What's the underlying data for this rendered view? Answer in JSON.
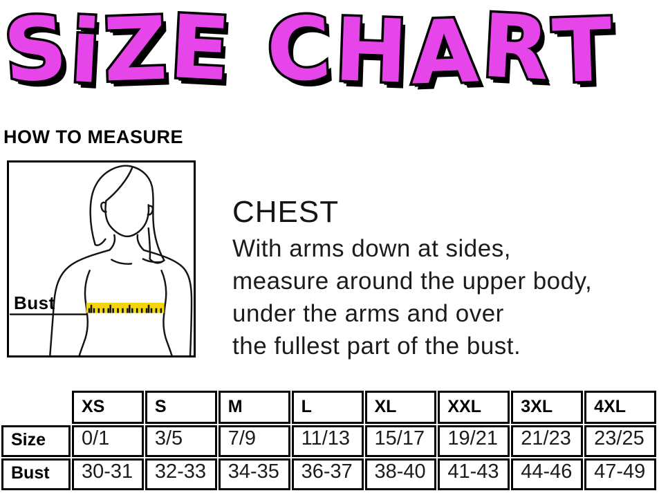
{
  "title": "SiZE CHART",
  "title_letters": [
    "S",
    "i",
    "Z",
    "E",
    " ",
    "C",
    "H",
    "A",
    "R",
    "T"
  ],
  "colors": {
    "title_pink": "#E645EA",
    "tape_yellow": "#F2D60B",
    "ink": "#000000"
  },
  "how_to_measure": {
    "heading": "HOW TO MEASURE",
    "figure_label": "Bust"
  },
  "measure_info": {
    "heading": "CHEST",
    "lines": [
      "With arms down at sides,",
      "measure around the upper body,",
      "under the arms and over",
      "the fullest part of the bust."
    ]
  },
  "size_table": {
    "columns": [
      "XS",
      "S",
      "M",
      "L",
      "XL",
      "XXL",
      "3XL",
      "4XL"
    ],
    "rows": [
      {
        "label": "Size",
        "values": [
          "0/1",
          "3/5",
          "7/9",
          "11/13",
          "15/17",
          "19/21",
          "21/23",
          "23/25"
        ]
      },
      {
        "label": "Bust",
        "values": [
          "30-31",
          "32-33",
          "34-35",
          "36-37",
          "38-40",
          "41-43",
          "44-46",
          "47-49"
        ]
      }
    ]
  }
}
